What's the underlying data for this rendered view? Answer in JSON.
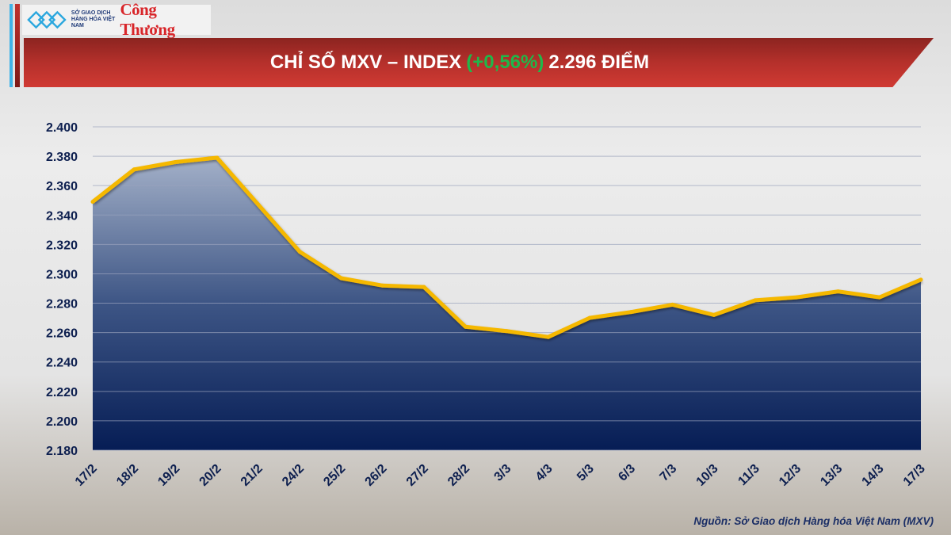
{
  "header": {
    "logo_mxv_text": "SỞ GIAO DỊCH HÀNG HÓA VIỆT NAM",
    "logo_congthuong_text": "Công Thương",
    "title_prefix": "CHỈ SỐ MXV – INDEX",
    "title_change": "(+0,56%)",
    "title_value": "2.296 ĐIỂM"
  },
  "chart_data": {
    "type": "area",
    "title": "CHỈ SỐ MXV – INDEX (+0,56%) 2.296 ĐIỂM",
    "xlabel": "",
    "ylabel": "",
    "ylim": [
      2180,
      2400
    ],
    "grid": true,
    "y_ticks": [
      "2.180",
      "2.200",
      "2.220",
      "2.240",
      "2.260",
      "2.280",
      "2.300",
      "2.320",
      "2.340",
      "2.360",
      "2.380",
      "2.400"
    ],
    "y_tick_values": [
      2180,
      2200,
      2220,
      2240,
      2260,
      2280,
      2300,
      2320,
      2340,
      2360,
      2380,
      2400
    ],
    "categories": [
      "17/2",
      "18/2",
      "19/2",
      "20/2",
      "21/2",
      "24/2",
      "25/2",
      "26/2",
      "27/2",
      "28/2",
      "3/3",
      "4/3",
      "5/3",
      "6/3",
      "7/3",
      "10/3",
      "11/3",
      "12/3",
      "13/3",
      "14/3",
      "17/3"
    ],
    "values": [
      2349,
      2371,
      2376,
      2379,
      2347,
      2315,
      2297,
      2292,
      2291,
      2264,
      2261,
      2257,
      2270,
      2274,
      2279,
      2272,
      2282,
      2284,
      2288,
      2284,
      2296
    ],
    "colors": {
      "line": "#f5b800",
      "fill_top": "#8e9fbd",
      "fill_bottom": "#061d55",
      "grid": "#9aa3bd",
      "title_change": "#1fb84a",
      "banner": "#b5302b"
    }
  },
  "footer": {
    "source": "Nguồn: Sở Giao dịch Hàng hóa Việt Nam (MXV)"
  }
}
